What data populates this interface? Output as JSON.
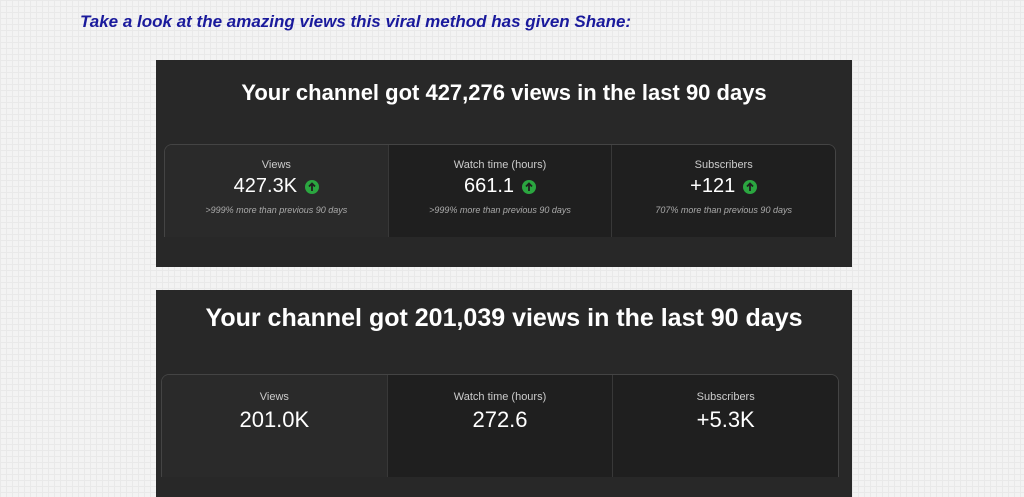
{
  "intro": "Take a look at the amazing views this viral method has given Shane:",
  "cards": [
    {
      "title": "Your channel got 427,276 views in the last 90 days",
      "stats": [
        {
          "label": "Views",
          "value": "427.3K",
          "note": ">999% more than previous 90 days"
        },
        {
          "label": "Watch time (hours)",
          "value": "661.1",
          "note": ">999% more than previous 90 days"
        },
        {
          "label": "Subscribers",
          "value": "+121",
          "note": "707% more than previous 90 days"
        }
      ]
    },
    {
      "title": "Your channel got 201,039 views in the last 90 days",
      "stats": [
        {
          "label": "Views",
          "value": "201.0K"
        },
        {
          "label": "Watch time (hours)",
          "value": "272.6"
        },
        {
          "label": "Subscribers",
          "value": "+5.3K"
        }
      ]
    }
  ]
}
